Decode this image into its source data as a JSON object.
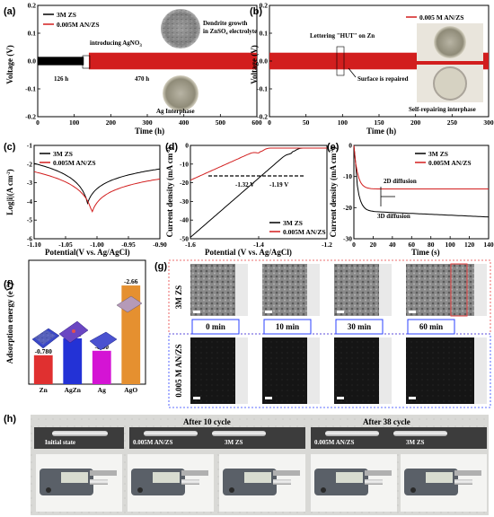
{
  "colors": {
    "red": "#d21e1e",
    "black": "#000000",
    "blue_bar": "#2332d6",
    "magenta_bar": "#d414d4",
    "orange_bar": "#e59030",
    "red_bar": "#e03030",
    "dashed_blue": "#2b40ff",
    "dashed_red": "#e64040"
  },
  "panel_labels": {
    "a": "(a)",
    "b": "(b)",
    "c": "(c)",
    "d": "(d)",
    "e": "(e)",
    "f": "(f)",
    "g": "(g)",
    "h": "(h)"
  },
  "chart_data": [
    {
      "id": "a",
      "type": "line",
      "xlabel": "Time (h)",
      "ylabel": "Voltage (V)",
      "xticks": [
        "0",
        "100",
        "200",
        "300",
        "400",
        "500",
        "600"
      ],
      "yticks": [
        "0.2",
        "0.1",
        "0.0",
        "-0.1",
        "-0.2"
      ],
      "xlim": [
        0,
        600
      ],
      "ylim": [
        -0.2,
        0.2
      ],
      "series": [
        {
          "name": "3M ZS",
          "color": "#000000",
          "x": [
            0,
            126
          ],
          "amplitude": 0.015
        },
        {
          "name": "0.005M AN/ZS",
          "color": "#d21e1e",
          "x": [
            140,
            600
          ],
          "amplitude": 0.03
        }
      ],
      "annotations": {
        "introducing": "introducing AgNO",
        "introducing_sub": "3",
        "t1": "126 h",
        "t2": "470 h",
        "dendrite": "Dendrite growth",
        "dendrite2": "in ZnSO",
        "dendrite2_sub": "4",
        "dendrite2_end": " electrolyte",
        "ag": "Ag Interphase"
      }
    },
    {
      "id": "b",
      "type": "line",
      "xlabel": "Time (h)",
      "ylabel": "Voltage (V)",
      "xticks": [
        "0",
        "50",
        "100",
        "150",
        "200",
        "250",
        "300"
      ],
      "yticks": [
        "0.2",
        "0.1",
        "0.0",
        "-0.1",
        "-0.2"
      ],
      "xlim": [
        0,
        300
      ],
      "ylim": [
        -0.2,
        0.2
      ],
      "series": [
        {
          "name": "0.005 M AN/ZS",
          "color": "#d21e1e",
          "x": [
            0,
            300
          ],
          "amplitude": 0.03
        }
      ],
      "annotations": {
        "lettering": "Lettering \"HUT\" on Zn",
        "repaired": "Surface is repaired",
        "selfrep": "Self-repairing interphase"
      }
    },
    {
      "id": "c",
      "type": "line",
      "xlabel": "Potential(V vs. Ag/AgCl)",
      "ylabel": "Log|i|(A cm",
      "ylabel_sup": "-2",
      "ylabel_end": ")",
      "xticks": [
        "-1.10",
        "-1.05",
        "-1.00",
        "-0.95",
        "-0.90"
      ],
      "yticks": [
        "-1",
        "-2",
        "-3",
        "-4",
        "-5",
        "-6"
      ],
      "xlim": [
        -1.1,
        -0.9
      ],
      "ylim": [
        -6,
        -1
      ],
      "series": [
        {
          "name": "3M ZS",
          "color": "#000000",
          "min_x": -1.015,
          "min_y": -4.1
        },
        {
          "name": "0.005M AN/ZS",
          "color": "#d21e1e",
          "min_x": -1.008,
          "min_y": -4.6
        }
      ]
    },
    {
      "id": "d",
      "type": "line",
      "xlabel": "Potential (V vs. Ag/AgCl)",
      "ylabel": "Current density (mA cm",
      "ylabel_sup": "-2",
      "ylabel_end": ")",
      "xticks": [
        "-1.6",
        "-1.4",
        "-1.2"
      ],
      "yticks": [
        "0",
        "-10",
        "-20",
        "-30",
        "-40",
        "-50"
      ],
      "xlim": [
        -1.6,
        -1.05
      ],
      "ylim": [
        -50,
        2
      ],
      "series": [
        {
          "name": "3M ZS",
          "color": "#000000",
          "onset": -1.19
        },
        {
          "name": "0.005M AN/ZS",
          "color": "#d21e1e",
          "onset": -1.32
        }
      ],
      "annotations": {
        "v1": "-1.32 V",
        "v2": "-1.19 V"
      }
    },
    {
      "id": "e",
      "type": "line",
      "xlabel": "Time (s)",
      "ylabel": "Current density (mA cm",
      "ylabel_sup": "-2",
      "ylabel_end": ")",
      "xticks": [
        "0",
        "20",
        "40",
        "60",
        "80",
        "100",
        "120",
        "140"
      ],
      "yticks": [
        "0",
        "-10",
        "-20",
        "-30"
      ],
      "xlim": [
        0,
        150
      ],
      "ylim": [
        -30,
        0
      ],
      "series": [
        {
          "name": "3M ZS",
          "color": "#000000",
          "plateau": -21
        },
        {
          "name": "0.005M AN/ZS",
          "color": "#d21e1e",
          "plateau": -14
        }
      ],
      "annotations": {
        "d2": "2D diffusion",
        "d3": "3D diffusion"
      }
    },
    {
      "id": "f",
      "type": "bar",
      "ylabel": "Adsorption energy (eV)",
      "categories": [
        "Zn",
        "AgZn",
        "Ag",
        "AgO"
      ],
      "values": [
        -0.78,
        -1.235,
        -0.9,
        -2.66
      ],
      "labels": [
        "-0.780",
        "-1.235",
        "-0.90",
        "-2.66"
      ],
      "colors": [
        "#e03030",
        "#2332d6",
        "#d414d4",
        "#e59030"
      ],
      "ylim": [
        0,
        -3
      ]
    }
  ],
  "panel_g": {
    "side_top": "3M ZS",
    "side_bottom": "0.005 M AN/ZS",
    "times": [
      "0 min",
      "10 min",
      "30 min",
      "60 min"
    ]
  },
  "panel_h": {
    "initial": "Initial state",
    "after10": "After 10 cycle",
    "after38": "After 38 cycle",
    "an": "0.005M AN/ZS",
    "zs": "3M ZS"
  }
}
